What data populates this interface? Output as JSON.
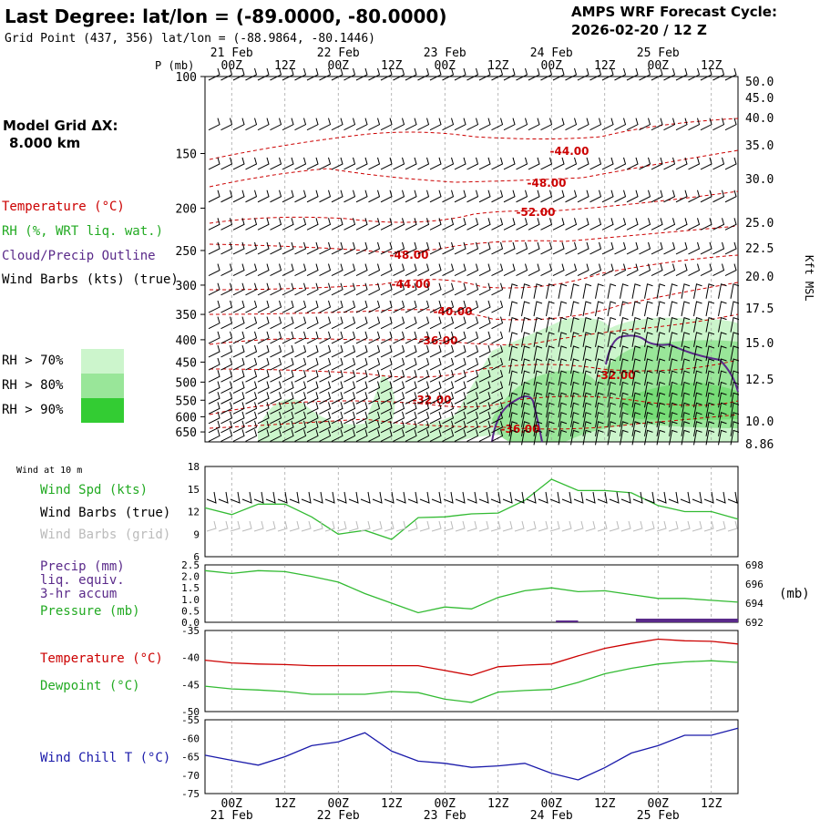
{
  "header": {
    "title": "Last Degree:  lat/lon = (-89.0000, -80.0000)",
    "subtitle": "Grid Point (437, 356) lat/lon = (-88.9864, -80.1446)",
    "cycle_label": "AMPS WRF Forecast Cycle:",
    "cycle_value": "2026-02-20 / 12  Z",
    "grid_label": "Model Grid ΔX:",
    "grid_value": "8.000 km"
  },
  "time_axis": {
    "labels": [
      "00Z",
      "12Z",
      "00Z",
      "12Z",
      "00Z",
      "12Z",
      "00Z",
      "12Z",
      "00Z",
      "12Z"
    ],
    "dates": [
      "21 Feb",
      "22 Feb",
      "23 Feb",
      "24 Feb",
      "25 Feb"
    ]
  },
  "legend": {
    "temperature": "Temperature (°C)",
    "rh": "RH (%, WRT liq. wat.)",
    "cloud": "Cloud/Precip Outline",
    "barbs": "Wind Barbs (kts) (true)",
    "rh70": "RH > 70%",
    "rh80": "RH > 80%",
    "rh90": "RH > 90%",
    "colors": {
      "rh70": "#ccf5cc",
      "rh80": "#99e699",
      "rh90": "#33cc33",
      "temp": "#cc0000",
      "cloud": "#5a2a8a"
    }
  },
  "chart_data": [
    {
      "type": "line",
      "id": "upper_air_cross_section",
      "ylabel": "P (mb)",
      "y_ticks": [
        100,
        150,
        200,
        250,
        300,
        350,
        400,
        450,
        500,
        550,
        600,
        650
      ],
      "right_ylabel": "Kft MSL",
      "right_ticks": [
        "50.0",
        "45.0",
        "40.0",
        "35.0",
        "30.0",
        "25.0",
        "22.5",
        "20.0",
        "17.5",
        "15.0",
        "12.5",
        "10.0",
        "8.86"
      ],
      "isotherm_labels": [
        "-44.00",
        "-48.00",
        "-52.00",
        "-48.00",
        "-44.00",
        "-40.00",
        "-36.00",
        "-32.00",
        "-32.00",
        "-36.00"
      ]
    },
    {
      "type": "line",
      "id": "wind_10m",
      "title": "Wind at 10 m",
      "series_labels": [
        "Wind Spd (kts)",
        "Wind Barbs (true)",
        "Wind Barbs (grid)"
      ],
      "y_ticks": [
        "18",
        "15",
        "12",
        "9",
        "6"
      ],
      "ylim": [
        6,
        18
      ],
      "x_hours": [
        0,
        6,
        12,
        18,
        24,
        30,
        36,
        42,
        48,
        54,
        60,
        66,
        72,
        78,
        84,
        90,
        96,
        102,
        108,
        114,
        120
      ],
      "wind_speed": [
        12.5,
        11.6,
        13.0,
        13.0,
        11.3,
        9.0,
        9.5,
        8.3,
        11.2,
        11.3,
        11.7,
        11.8,
        13.5,
        16.3,
        14.8,
        14.8,
        14.5,
        12.8,
        12.0,
        12.0,
        11.0
      ]
    },
    {
      "type": "line",
      "id": "precip_pressure",
      "series_labels": [
        "Precip (mm)",
        "liq. equiv.",
        "3-hr accum",
        "Pressure (mb)"
      ],
      "left_ticks": [
        "2.5",
        "2.0",
        "1.5",
        "1.0",
        "0.5",
        "0.0"
      ],
      "right_ticks": [
        "698",
        "696",
        "694",
        "692"
      ],
      "right_unit": "(mb)",
      "ylim_precip": [
        0,
        2.5
      ],
      "ylim_pressure": [
        692,
        698
      ],
      "x_hours": [
        0,
        6,
        12,
        18,
        24,
        30,
        36,
        42,
        48,
        54,
        60,
        66,
        72,
        78,
        84,
        90,
        96,
        102,
        108,
        114,
        120
      ],
      "pressure": [
        697.4,
        697.1,
        697.4,
        697.3,
        696.8,
        696.2,
        695.0,
        694.0,
        693.0,
        693.6,
        693.4,
        694.6,
        695.3,
        695.6,
        695.2,
        695.3,
        694.9,
        694.5,
        694.5,
        694.3,
        694.1
      ]
    },
    {
      "type": "line",
      "id": "temp_dewpoint",
      "series_labels": [
        "Temperature (°C)",
        "Dewpoint (°C)"
      ],
      "y_ticks": [
        "-35",
        "-40",
        "-45",
        "-50"
      ],
      "ylim": [
        -50,
        -35
      ],
      "x_hours": [
        0,
        6,
        12,
        18,
        24,
        30,
        36,
        42,
        48,
        54,
        60,
        66,
        72,
        78,
        84,
        90,
        96,
        102,
        108,
        114,
        120
      ],
      "temperature": [
        -40.5,
        -41.0,
        -41.2,
        -41.3,
        -41.5,
        -41.5,
        -41.5,
        -41.5,
        -41.5,
        -42.4,
        -43.3,
        -41.7,
        -41.4,
        -41.2,
        -39.7,
        -38.3,
        -37.4,
        -36.6,
        -36.9,
        -37.0,
        -37.5
      ],
      "dewpoint": [
        -45.3,
        -45.8,
        -46.0,
        -46.3,
        -46.8,
        -46.8,
        -46.8,
        -46.3,
        -46.5,
        -47.7,
        -48.3,
        -46.4,
        -46.1,
        -45.9,
        -44.6,
        -43.0,
        -42.0,
        -41.2,
        -40.8,
        -40.6,
        -40.9
      ]
    },
    {
      "type": "line",
      "id": "wind_chill",
      "series_labels": [
        "Wind Chill T (°C)"
      ],
      "y_ticks": [
        "-55",
        "-60",
        "-65",
        "-70",
        "-75"
      ],
      "ylim": [
        -75,
        -55
      ],
      "x_hours": [
        0,
        6,
        12,
        18,
        24,
        30,
        36,
        42,
        48,
        54,
        60,
        66,
        72,
        78,
        84,
        90,
        96,
        102,
        108,
        114,
        120
      ],
      "wind_chill": [
        -64.6,
        -66.0,
        -67.3,
        -65.0,
        -62.0,
        -61.0,
        -58.5,
        -63.5,
        -66.2,
        -66.8,
        -67.9,
        -67.5,
        -66.8,
        -69.5,
        -71.3,
        -68.0,
        -64.0,
        -62.0,
        -59.2,
        -59.2,
        -57.3
      ]
    }
  ]
}
